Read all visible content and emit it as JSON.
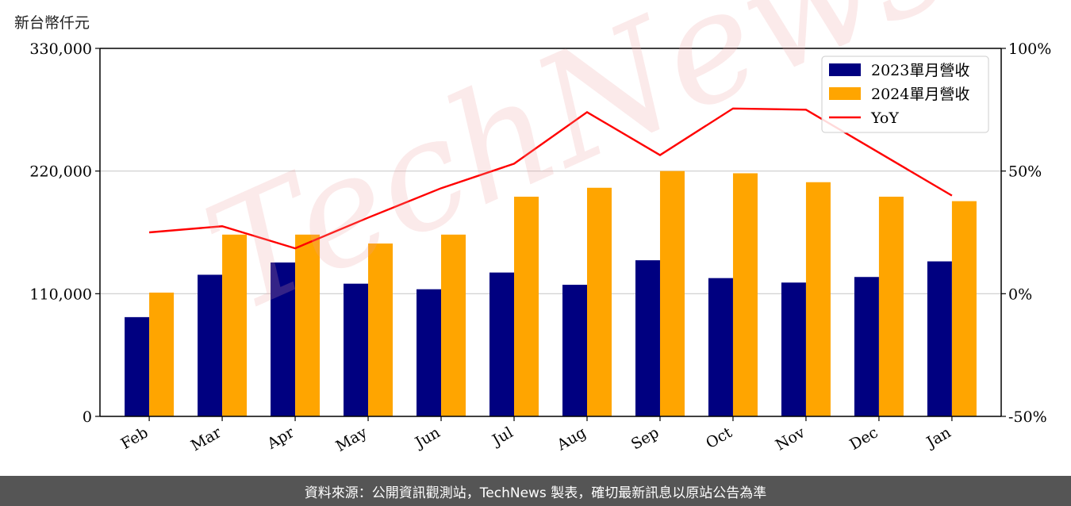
{
  "unit_label": "新台幣仟元",
  "footer_text": "資料來源：公開資訊觀測站，TechNews 製表，確切最新訊息以原站公告為準",
  "watermark_text": "TechNews",
  "colors": {
    "series_2023": "#000080",
    "series_2024": "#ffa500",
    "yoy": "#ff0000",
    "grid": "#cccccc"
  },
  "chart_data": {
    "type": "bar",
    "categories": [
      "Feb",
      "Mar",
      "Apr",
      "May",
      "Jun",
      "Jul",
      "Aug",
      "Sep",
      "Oct",
      "Nov",
      "Dec",
      "Jan"
    ],
    "series": [
      {
        "name": "2023單月營收",
        "axis": "left",
        "values": [
          89000,
          127000,
          138000,
          119000,
          114000,
          129000,
          118000,
          140000,
          124000,
          120000,
          125000,
          139000
        ]
      },
      {
        "name": "2024單月營收",
        "axis": "left",
        "values": [
          111000,
          163000,
          163000,
          155000,
          163000,
          197000,
          205000,
          220000,
          218000,
          210000,
          197000,
          193000
        ]
      }
    ],
    "line_series": [
      {
        "name": "YoY",
        "type": "line",
        "axis": "right",
        "values": [
          25,
          27.5,
          18.5,
          31,
          43,
          53,
          74,
          56.5,
          75.5,
          75,
          57.5,
          40
        ]
      }
    ],
    "left_axis": {
      "ylim": [
        0,
        330000
      ],
      "ticks": [
        "0",
        "110,000",
        "220,000",
        "330,000"
      ]
    },
    "right_axis": {
      "ylim": [
        -50,
        100
      ],
      "ticks": [
        "-50%",
        "0%",
        "50%",
        "100%"
      ]
    },
    "grid": "horizontal",
    "legend_position": "top-right"
  }
}
